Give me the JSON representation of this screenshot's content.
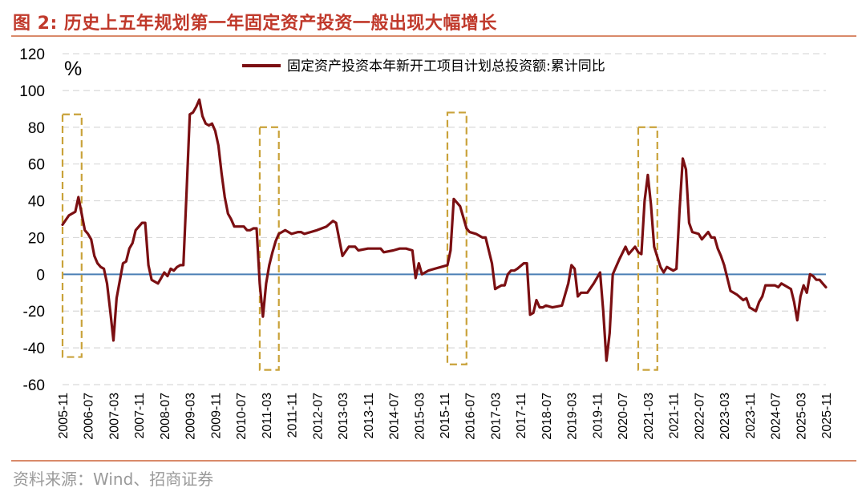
{
  "header": {
    "title": "图 2:  历史上五年规划第一年固定资产投资一般出现大幅增长"
  },
  "footer": {
    "source": "资料来源：Wind、招商证券"
  },
  "colors": {
    "title": "#c0392b",
    "rule": "#d98a6a",
    "series": "#7b0f12",
    "zero_line": "#4a7fb5",
    "grid": "#d9d9d9",
    "highlight_box": "#c9a23a",
    "source_text": "#9a9a9a"
  },
  "chart_data": {
    "type": "line",
    "unit_label": "%",
    "ylim": [
      -60,
      120
    ],
    "yticks": [
      -60,
      -40,
      -20,
      0,
      20,
      40,
      60,
      80,
      100,
      120
    ],
    "grid": "horizontal dashed",
    "legend_position": "top-right",
    "x_tick_labels": [
      "2005-11",
      "2006-07",
      "2007-03",
      "2007-11",
      "2008-07",
      "2009-03",
      "2009-11",
      "2010-07",
      "2011-03",
      "2011-11",
      "2012-07",
      "2013-03",
      "2013-11",
      "2014-07",
      "2015-03",
      "2015-11",
      "2016-07",
      "2017-03",
      "2017-11",
      "2018-07",
      "2019-03",
      "2019-11",
      "2020-07",
      "2021-03",
      "2021-11",
      "2022-07",
      "2023-03",
      "2023-11",
      "2024-07",
      "2025-03",
      "2025-11"
    ],
    "series": [
      {
        "name": "固定资产投资本年新开工项目计划总投资额:累计同比",
        "color": "#7b0f12",
        "points": [
          [
            "2005-11",
            27
          ],
          [
            "2006-01",
            32
          ],
          [
            "2006-03",
            34
          ],
          [
            "2006-04",
            42
          ],
          [
            "2006-05",
            33
          ],
          [
            "2006-06",
            24
          ],
          [
            "2006-07",
            22
          ],
          [
            "2006-08",
            19
          ],
          [
            "2006-09",
            10
          ],
          [
            "2006-10",
            6
          ],
          [
            "2006-11",
            4
          ],
          [
            "2006-12",
            3
          ],
          [
            "2007-01",
            -5
          ],
          [
            "2007-02",
            -20
          ],
          [
            "2007-03",
            -36
          ],
          [
            "2007-04",
            -13
          ],
          [
            "2007-06",
            6
          ],
          [
            "2007-07",
            7
          ],
          [
            "2007-08",
            14
          ],
          [
            "2007-09",
            17
          ],
          [
            "2007-10",
            24
          ],
          [
            "2007-12",
            28
          ],
          [
            "2008-01",
            28
          ],
          [
            "2008-02",
            5
          ],
          [
            "2008-03",
            -3
          ],
          [
            "2008-04",
            -4
          ],
          [
            "2008-05",
            -5
          ],
          [
            "2008-06",
            -2
          ],
          [
            "2008-07",
            1
          ],
          [
            "2008-08",
            -1
          ],
          [
            "2008-09",
            3
          ],
          [
            "2008-10",
            2
          ],
          [
            "2008-11",
            4
          ],
          [
            "2008-12",
            5
          ],
          [
            "2009-01",
            5
          ],
          [
            "2009-02",
            45
          ],
          [
            "2009-03",
            87
          ],
          [
            "2009-04",
            88
          ],
          [
            "2009-05",
            91
          ],
          [
            "2009-06",
            95
          ],
          [
            "2009-07",
            86
          ],
          [
            "2009-08",
            82
          ],
          [
            "2009-09",
            81
          ],
          [
            "2009-10",
            82
          ],
          [
            "2009-11",
            78
          ],
          [
            "2009-12",
            70
          ],
          [
            "2010-01",
            55
          ],
          [
            "2010-02",
            42
          ],
          [
            "2010-03",
            33
          ],
          [
            "2010-04",
            30
          ],
          [
            "2010-05",
            26
          ],
          [
            "2010-07",
            26
          ],
          [
            "2010-08",
            26
          ],
          [
            "2010-09",
            24
          ],
          [
            "2010-10",
            24
          ],
          [
            "2010-11",
            25
          ],
          [
            "2010-12",
            25
          ],
          [
            "2011-01",
            -5
          ],
          [
            "2011-02",
            -23
          ],
          [
            "2011-03",
            -5
          ],
          [
            "2011-04",
            5
          ],
          [
            "2011-05",
            12
          ],
          [
            "2011-06",
            18
          ],
          [
            "2011-07",
            22
          ],
          [
            "2011-09",
            24
          ],
          [
            "2011-11",
            22
          ],
          [
            "2012-01",
            23
          ],
          [
            "2012-02",
            23
          ],
          [
            "2012-03",
            22
          ],
          [
            "2012-05",
            23
          ],
          [
            "2012-07",
            24
          ],
          [
            "2012-10",
            26
          ],
          [
            "2012-12",
            29
          ],
          [
            "2013-01",
            28
          ],
          [
            "2013-03",
            10
          ],
          [
            "2013-05",
            15
          ],
          [
            "2013-07",
            15
          ],
          [
            "2013-08",
            13
          ],
          [
            "2013-11",
            14
          ],
          [
            "2014-01",
            14
          ],
          [
            "2014-03",
            14
          ],
          [
            "2014-04",
            12
          ],
          [
            "2014-07",
            13
          ],
          [
            "2014-09",
            14
          ],
          [
            "2014-11",
            14
          ],
          [
            "2015-01",
            13
          ],
          [
            "2015-02",
            -2
          ],
          [
            "2015-03",
            6
          ],
          [
            "2015-04",
            0
          ],
          [
            "2015-06",
            2
          ],
          [
            "2015-08",
            3
          ],
          [
            "2015-10",
            4
          ],
          [
            "2015-12",
            5
          ],
          [
            "2016-01",
            13
          ],
          [
            "2016-02",
            41
          ],
          [
            "2016-04",
            37
          ],
          [
            "2016-06",
            25
          ],
          [
            "2016-07",
            23
          ],
          [
            "2016-09",
            22
          ],
          [
            "2016-11",
            20
          ],
          [
            "2016-12",
            20
          ],
          [
            "2017-02",
            6
          ],
          [
            "2017-03",
            -8
          ],
          [
            "2017-04",
            -7
          ],
          [
            "2017-05",
            -6
          ],
          [
            "2017-06",
            -6
          ],
          [
            "2017-07",
            0
          ],
          [
            "2017-08",
            2
          ],
          [
            "2017-09",
            2
          ],
          [
            "2017-10",
            3
          ],
          [
            "2017-12",
            6
          ],
          [
            "2018-01",
            6
          ],
          [
            "2018-02",
            -22
          ],
          [
            "2018-03",
            -21
          ],
          [
            "2018-04",
            -14
          ],
          [
            "2018-05",
            -18
          ],
          [
            "2018-06",
            -18
          ],
          [
            "2018-07",
            -17
          ],
          [
            "2018-09",
            -18
          ],
          [
            "2018-12",
            -17
          ],
          [
            "2019-02",
            -5
          ],
          [
            "2019-03",
            5
          ],
          [
            "2019-04",
            3
          ],
          [
            "2019-05",
            -12
          ],
          [
            "2019-06",
            -10
          ],
          [
            "2019-08",
            -10
          ],
          [
            "2019-10",
            -5
          ],
          [
            "2019-12",
            1
          ],
          [
            "2020-01",
            -20
          ],
          [
            "2020-02",
            -47
          ],
          [
            "2020-03",
            -32
          ],
          [
            "2020-04",
            0
          ],
          [
            "2020-06",
            8
          ],
          [
            "2020-08",
            15
          ],
          [
            "2020-09",
            11
          ],
          [
            "2020-11",
            15
          ],
          [
            "2020-12",
            12
          ],
          [
            "2021-01",
            11
          ],
          [
            "2021-02",
            40
          ],
          [
            "2021-03",
            54
          ],
          [
            "2021-04",
            38
          ],
          [
            "2021-05",
            15
          ],
          [
            "2021-07",
            4
          ],
          [
            "2021-08",
            1
          ],
          [
            "2021-09",
            4
          ],
          [
            "2021-11",
            2
          ],
          [
            "2021-12",
            3
          ],
          [
            "2022-01",
            35
          ],
          [
            "2022-02",
            63
          ],
          [
            "2022-03",
            57
          ],
          [
            "2022-04",
            28
          ],
          [
            "2022-05",
            23
          ],
          [
            "2022-07",
            22
          ],
          [
            "2022-08",
            19
          ],
          [
            "2022-10",
            23
          ],
          [
            "2022-11",
            20
          ],
          [
            "2022-12",
            20
          ],
          [
            "2023-01",
            14
          ],
          [
            "2023-02",
            10
          ],
          [
            "2023-03",
            5
          ],
          [
            "2023-05",
            -9
          ],
          [
            "2023-07",
            -11
          ],
          [
            "2023-09",
            -14
          ],
          [
            "2023-10",
            -13
          ],
          [
            "2023-11",
            -18
          ],
          [
            "2024-01",
            -20
          ],
          [
            "2024-02",
            -15
          ],
          [
            "2024-03",
            -12
          ],
          [
            "2024-04",
            -6
          ],
          [
            "2024-05",
            -6
          ],
          [
            "2024-07",
            -6
          ],
          [
            "2024-08",
            -7
          ],
          [
            "2024-09",
            -5
          ],
          [
            "2024-11",
            -7
          ],
          [
            "2024-12",
            -8
          ],
          [
            "2025-01",
            -15
          ],
          [
            "2025-02",
            -25
          ],
          [
            "2025-03",
            -12
          ],
          [
            "2025-04",
            -6
          ],
          [
            "2025-05",
            -10
          ],
          [
            "2025-06",
            0
          ],
          [
            "2025-07",
            -1
          ],
          [
            "2025-08",
            -3
          ],
          [
            "2025-09",
            -3
          ],
          [
            "2025-10",
            -5
          ],
          [
            "2025-11",
            -7
          ]
        ]
      }
    ],
    "highlight_boxes": [
      {
        "from": "2005-11",
        "to": "2006-05",
        "y_top": 87,
        "y_bottom": -45
      },
      {
        "from": "2011-01",
        "to": "2011-07",
        "y_top": 80,
        "y_bottom": -52
      },
      {
        "from": "2015-12",
        "to": "2016-06",
        "y_top": 88,
        "y_bottom": -49
      },
      {
        "from": "2020-12",
        "to": "2021-06",
        "y_top": 80,
        "y_bottom": -52
      }
    ]
  }
}
